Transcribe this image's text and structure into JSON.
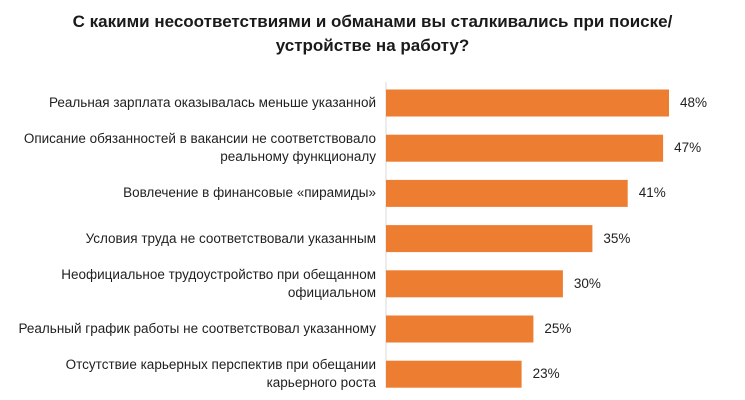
{
  "chart_data": {
    "type": "bar",
    "orientation": "horizontal",
    "title": "С какими несоответствиями и обманами вы сталкивались при поиске/устройстве на работу?",
    "categories": [
      "Реальная зарплата оказывалась меньше указанной",
      "Описание обязанностей в вакансии не соответствовало реальному функционалу",
      "Вовлечение в финансовые «пирамиды»",
      "Условия труда не соответствовали указанным",
      "Неофициальное трудоустройство при обещанном официальном",
      "Реальный график работы не соответствовал указанному",
      "Отсутствие карьерных перспектив при обещании карьерного роста"
    ],
    "values": [
      48,
      47,
      41,
      35,
      30,
      25,
      23
    ],
    "value_labels": [
      "48%",
      "47%",
      "41%",
      "35%",
      "30%",
      "25%",
      "23%"
    ],
    "unit": "%",
    "xlim": [
      0,
      48
    ],
    "grid": false,
    "legend": "none",
    "bar_color": "#ED7D31"
  }
}
